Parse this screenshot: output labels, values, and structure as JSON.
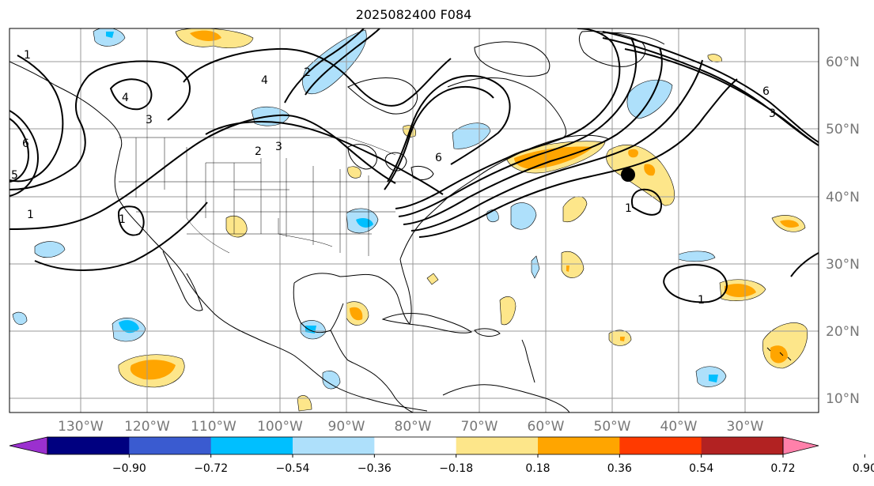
{
  "title": "2025082400 F084",
  "lat_labels": [
    "60°N",
    "50°N",
    "40°N",
    "30°N",
    "20°N",
    "10°N"
  ],
  "lon_labels": [
    "130°W",
    "120°W",
    "110°W",
    "100°W",
    "90°W",
    "80°W",
    "70°W",
    "60°W",
    "50°W",
    "40°W",
    "30°W"
  ],
  "colorbar": {
    "ticks": [
      "−0.90",
      "−0.72",
      "−0.54",
      "−0.36",
      "−0.18",
      "0.18",
      "0.36",
      "0.54",
      "0.72",
      "0.90"
    ],
    "colors": [
      "#9b30cf",
      "#000080",
      "#3a5bd0",
      "#00bfff",
      "#aee0fb",
      "#ffffff",
      "#fde68a",
      "#ffa500",
      "#ff3a00",
      "#b22222",
      "#ff80aa"
    ]
  },
  "contour_labels": [
    "1",
    "1",
    "1",
    "1",
    "1",
    "2",
    "2",
    "3",
    "3",
    "3",
    "4",
    "4",
    "5",
    "6",
    "6",
    "6"
  ],
  "colors": {
    "contour": "#000000",
    "grid": "#999999",
    "marker": "#000000"
  }
}
